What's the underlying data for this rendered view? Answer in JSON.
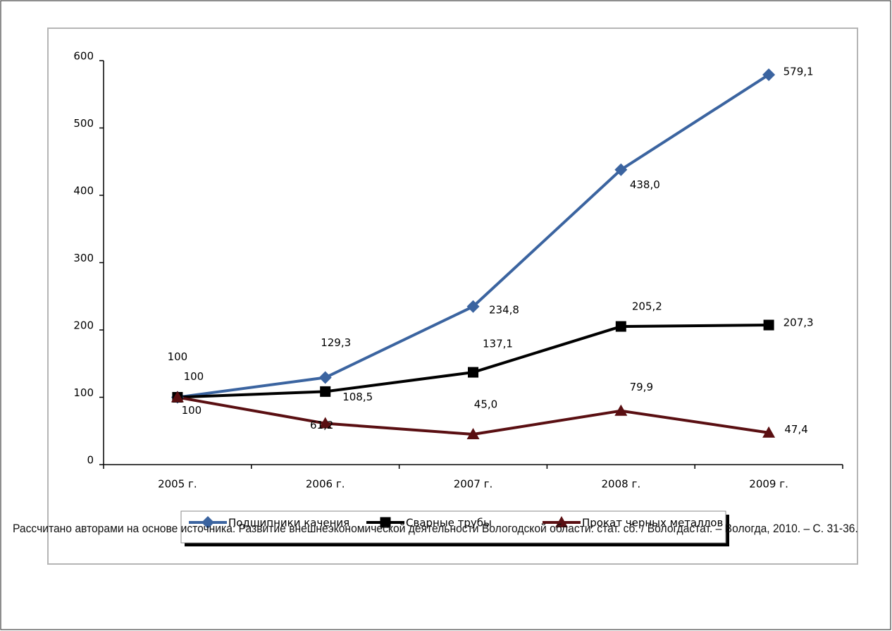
{
  "chart_data": {
    "type": "line",
    "categories": [
      "2005 г.",
      "2006 г.",
      "2007 г.",
      "2008 г.",
      "2009 г."
    ],
    "series": [
      {
        "name": "Подшипники качения",
        "color": "#3b64a0",
        "marker": "diamond",
        "values": [
          100,
          129.3,
          234.8,
          438.0,
          579.1
        ],
        "value_labels": [
          "100",
          "129,3",
          "234,8",
          "438,0",
          "579,1"
        ]
      },
      {
        "name": "Сварные трубы",
        "color": "#000000",
        "marker": "square",
        "values": [
          100,
          108.5,
          137.1,
          205.2,
          207.3
        ],
        "value_labels": [
          "100",
          "108,5",
          "137,1",
          "205,2",
          "207,3"
        ]
      },
      {
        "name": "Прокат черных металлов",
        "color": "#5a0f12",
        "marker": "triangle",
        "values": [
          100,
          61.2,
          45.0,
          79.9,
          47.4
        ],
        "value_labels": [
          "100",
          "61,2",
          "45,0",
          "79,9",
          "47,4"
        ]
      }
    ],
    "ylim": [
      0,
      600
    ],
    "yticks": [
      0,
      100,
      200,
      300,
      400,
      500,
      600
    ],
    "legend": "bottom",
    "source": "Рассчитано авторами на основе источника: Развитие внешнеэкономической деятельности Вологодской области: стат. сб. / Вологдастат. – Вологда, 2010. – С. 31-36."
  }
}
